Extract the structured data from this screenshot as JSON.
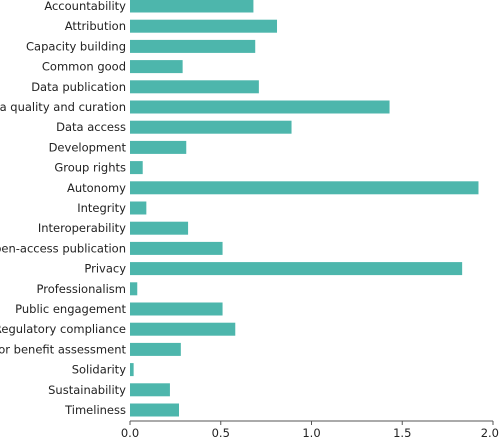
{
  "chart_data": {
    "type": "bar",
    "orientation": "horizontal",
    "categories": [
      "Accountability",
      "Attribution",
      "Capacity building",
      "Common good",
      "Data publication",
      "Data quality and curation",
      "Data access",
      "Development",
      "Group rights",
      "Autonomy",
      "Integrity",
      "Interoperability",
      "Open-access publication",
      "Privacy",
      "Professionalism",
      "Public engagement",
      "Regulatory compliance",
      "Risk or benefit assessment",
      "Solidarity",
      "Sustainability",
      "Timeliness"
    ],
    "values": [
      0.68,
      0.81,
      0.69,
      0.29,
      0.71,
      1.43,
      0.89,
      0.31,
      0.07,
      1.92,
      0.09,
      0.32,
      0.51,
      1.83,
      0.04,
      0.51,
      0.58,
      0.28,
      0.02,
      0.22,
      0.27
    ],
    "xlim": [
      0,
      2.0
    ],
    "xticks": [
      "0.0",
      "0.5",
      "1.0",
      "1.5",
      "2.0"
    ],
    "xtick_values": [
      0,
      0.5,
      1.0,
      1.5,
      2.0
    ],
    "bar_color": "#4db6ac",
    "grid": false,
    "title": "",
    "xlabel": "",
    "ylabel": ""
  }
}
